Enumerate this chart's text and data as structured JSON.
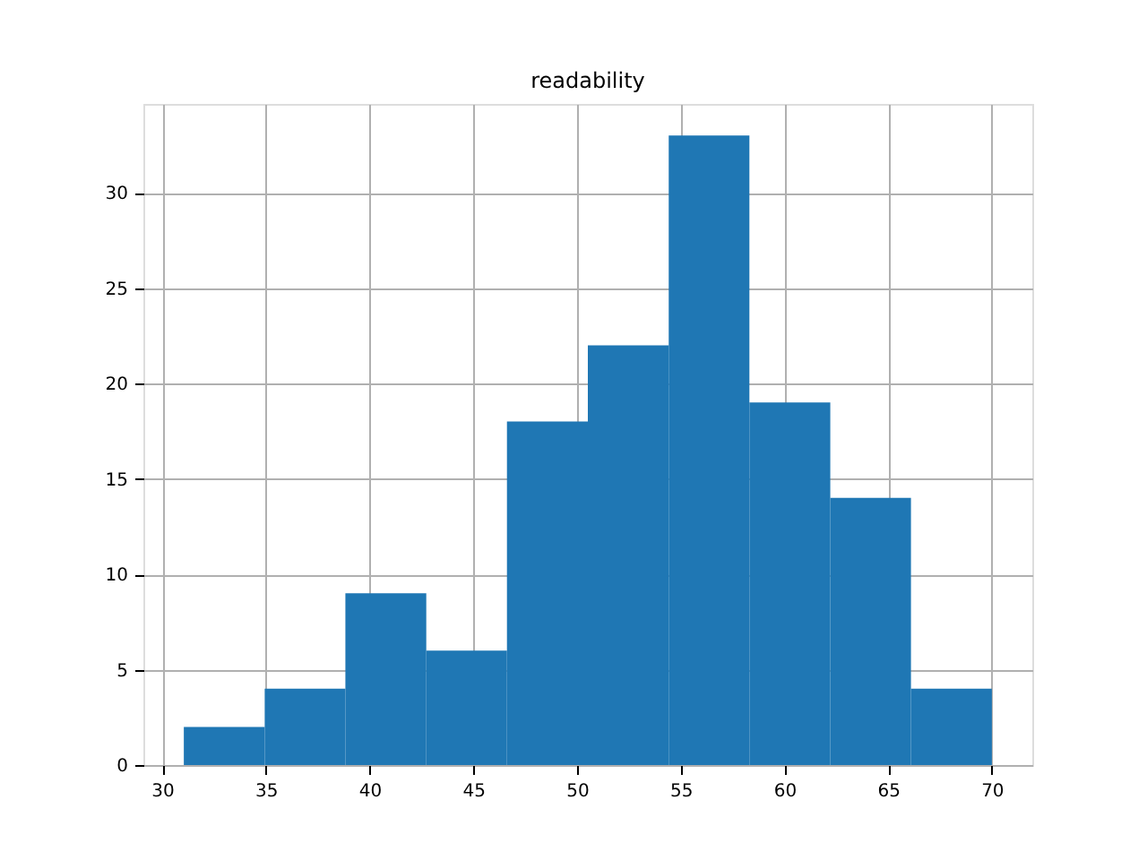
{
  "chart_data": {
    "type": "histogram",
    "title": "readability",
    "bins": [
      31.04,
      34.94,
      38.83,
      42.73,
      46.62,
      50.52,
      54.42,
      58.31,
      62.21,
      66.1,
      70.0
    ],
    "values": [
      2,
      4,
      9,
      6,
      18,
      22,
      33,
      19,
      14,
      4
    ],
    "color": "#1f77b4",
    "xlim": [
      29.09,
      71.95
    ],
    "xticks": [
      30,
      35,
      40,
      45,
      50,
      55,
      60,
      65,
      70
    ],
    "ylim": [
      0,
      34.65
    ],
    "yticks": [
      0,
      5,
      10,
      15,
      20,
      25,
      30
    ],
    "grid": true
  }
}
